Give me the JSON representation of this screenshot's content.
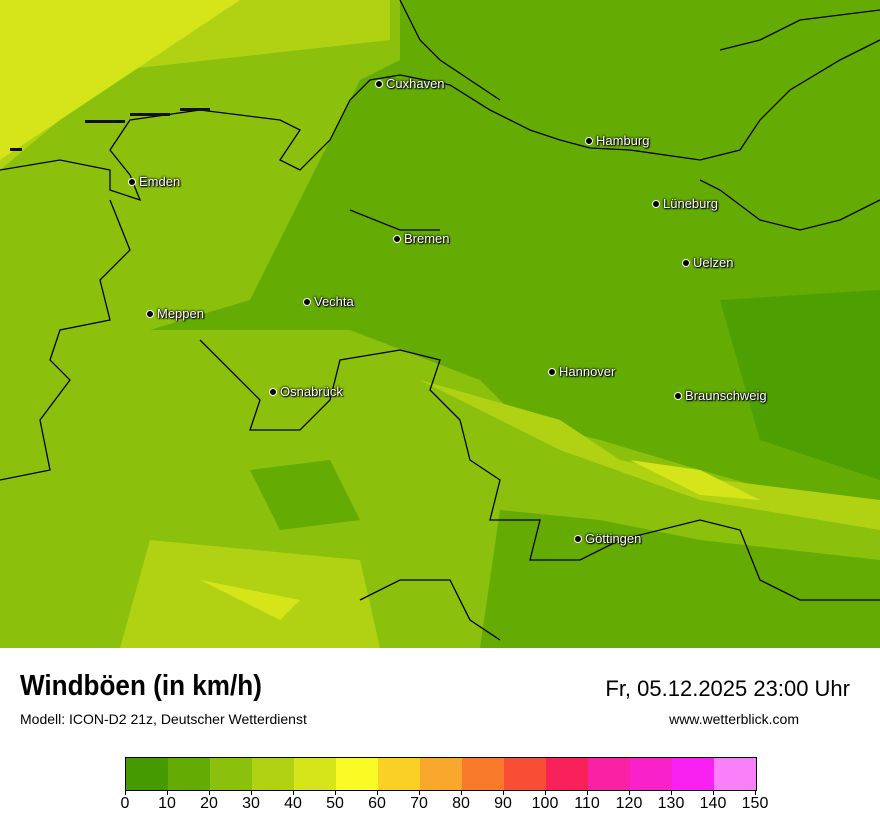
{
  "title": "Windböen (in km/h)",
  "subtitle": "Modell: ICON-D2 21z, Deutscher Wetterdienst",
  "datetime": "Fr, 05.12.2025 23:00 Uhr",
  "website": "www.wetterblick.com",
  "cities": [
    {
      "name": "Cuxhaven"
    },
    {
      "name": "Hamburg"
    },
    {
      "name": "Emden"
    },
    {
      "name": "Lüneburg"
    },
    {
      "name": "Bremen"
    },
    {
      "name": "Uelzen"
    },
    {
      "name": "Vechta"
    },
    {
      "name": "Meppen"
    },
    {
      "name": "Hannover"
    },
    {
      "name": "Osnabrück"
    },
    {
      "name": "Braunschweig"
    },
    {
      "name": "Göttingen"
    }
  ],
  "legend": {
    "unit": "km/h",
    "ticks": [
      "0",
      "10",
      "20",
      "30",
      "40",
      "50",
      "60",
      "70",
      "80",
      "90",
      "100",
      "110",
      "120",
      "130",
      "140",
      "150"
    ],
    "colors": [
      "#449a00",
      "#64ab04",
      "#8bc00c",
      "#b0d213",
      "#d5e51a",
      "#fafa24",
      "#fad024",
      "#f9a72d",
      "#f9792a",
      "#f94e36",
      "#f9215a",
      "#f921a4",
      "#f921c9",
      "#f921f2",
      "#fa80fa"
    ]
  }
}
